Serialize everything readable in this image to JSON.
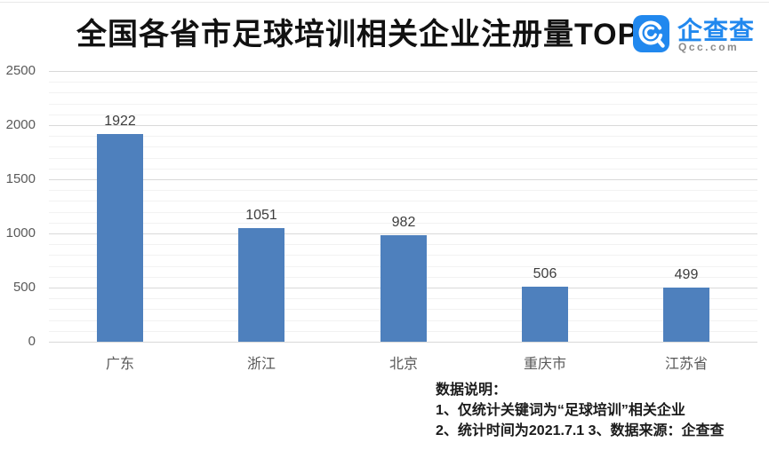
{
  "header": {
    "title": "全国各省市足球培训相关企业注册量TOP5",
    "logo": {
      "brand": "企查查",
      "domain": "Qcc.com",
      "brand_color": "#2188ee"
    }
  },
  "chart_data": {
    "type": "bar",
    "title": "全国各省市足球培训相关企业注册量TOP5",
    "categories": [
      "广东",
      "浙江",
      "北京",
      "重庆市",
      "江苏省"
    ],
    "values": [
      1922,
      1051,
      982,
      506,
      499
    ],
    "xlabel": "",
    "ylabel": "",
    "ylim": [
      0,
      2500
    ],
    "yticks": [
      0,
      500,
      1000,
      1500,
      2000,
      2500
    ],
    "ytick_step": 500,
    "minor_grid_step": 100,
    "grid": true,
    "legend": false,
    "bar_color": "#4e80bd",
    "value_labels_shown": true
  },
  "notes": {
    "heading": "数据说明：",
    "items": [
      "1、仅统计关键词为“足球培训”相关企业",
      "2、统计时间为2021.7.1   3、数据来源：企查查"
    ]
  },
  "colors": {
    "bar": "#4e80bd",
    "major_grid": "#d9d9d9",
    "minor_grid": "#f2f2f2",
    "axis_label": "#595959",
    "value_label": "#3d3d3d",
    "title": "#111111",
    "brand_blue": "#2188ee",
    "domain_gray": "#8a8a8a"
  }
}
